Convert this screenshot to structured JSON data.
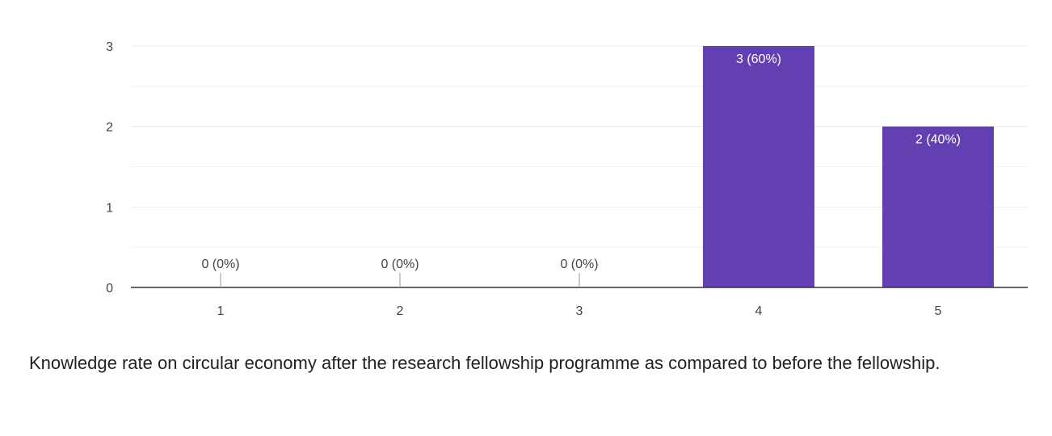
{
  "question": {
    "text": "Knowledge rate on circular economy after the research fellowship programme as compared to before the fellowship."
  },
  "colors": {
    "bar": "#6340b1",
    "grid": "#ebebeb",
    "axis": "#333333",
    "tick_text": "#444444",
    "label_inside": "#ffffff",
    "label_outside": "#444444"
  },
  "chart_data": {
    "type": "bar",
    "title": "",
    "xlabel": "",
    "ylabel": "",
    "categories": [
      "1",
      "2",
      "3",
      "4",
      "5"
    ],
    "values": [
      0,
      0,
      0,
      3,
      2
    ],
    "data_labels": [
      "0 (0%)",
      "0 (0%)",
      "0 (0%)",
      "3 (60%)",
      "2 (40%)"
    ],
    "ylim": [
      0,
      3
    ],
    "yticks": [
      0,
      1,
      2,
      3
    ],
    "grid": true,
    "legend": "none"
  }
}
